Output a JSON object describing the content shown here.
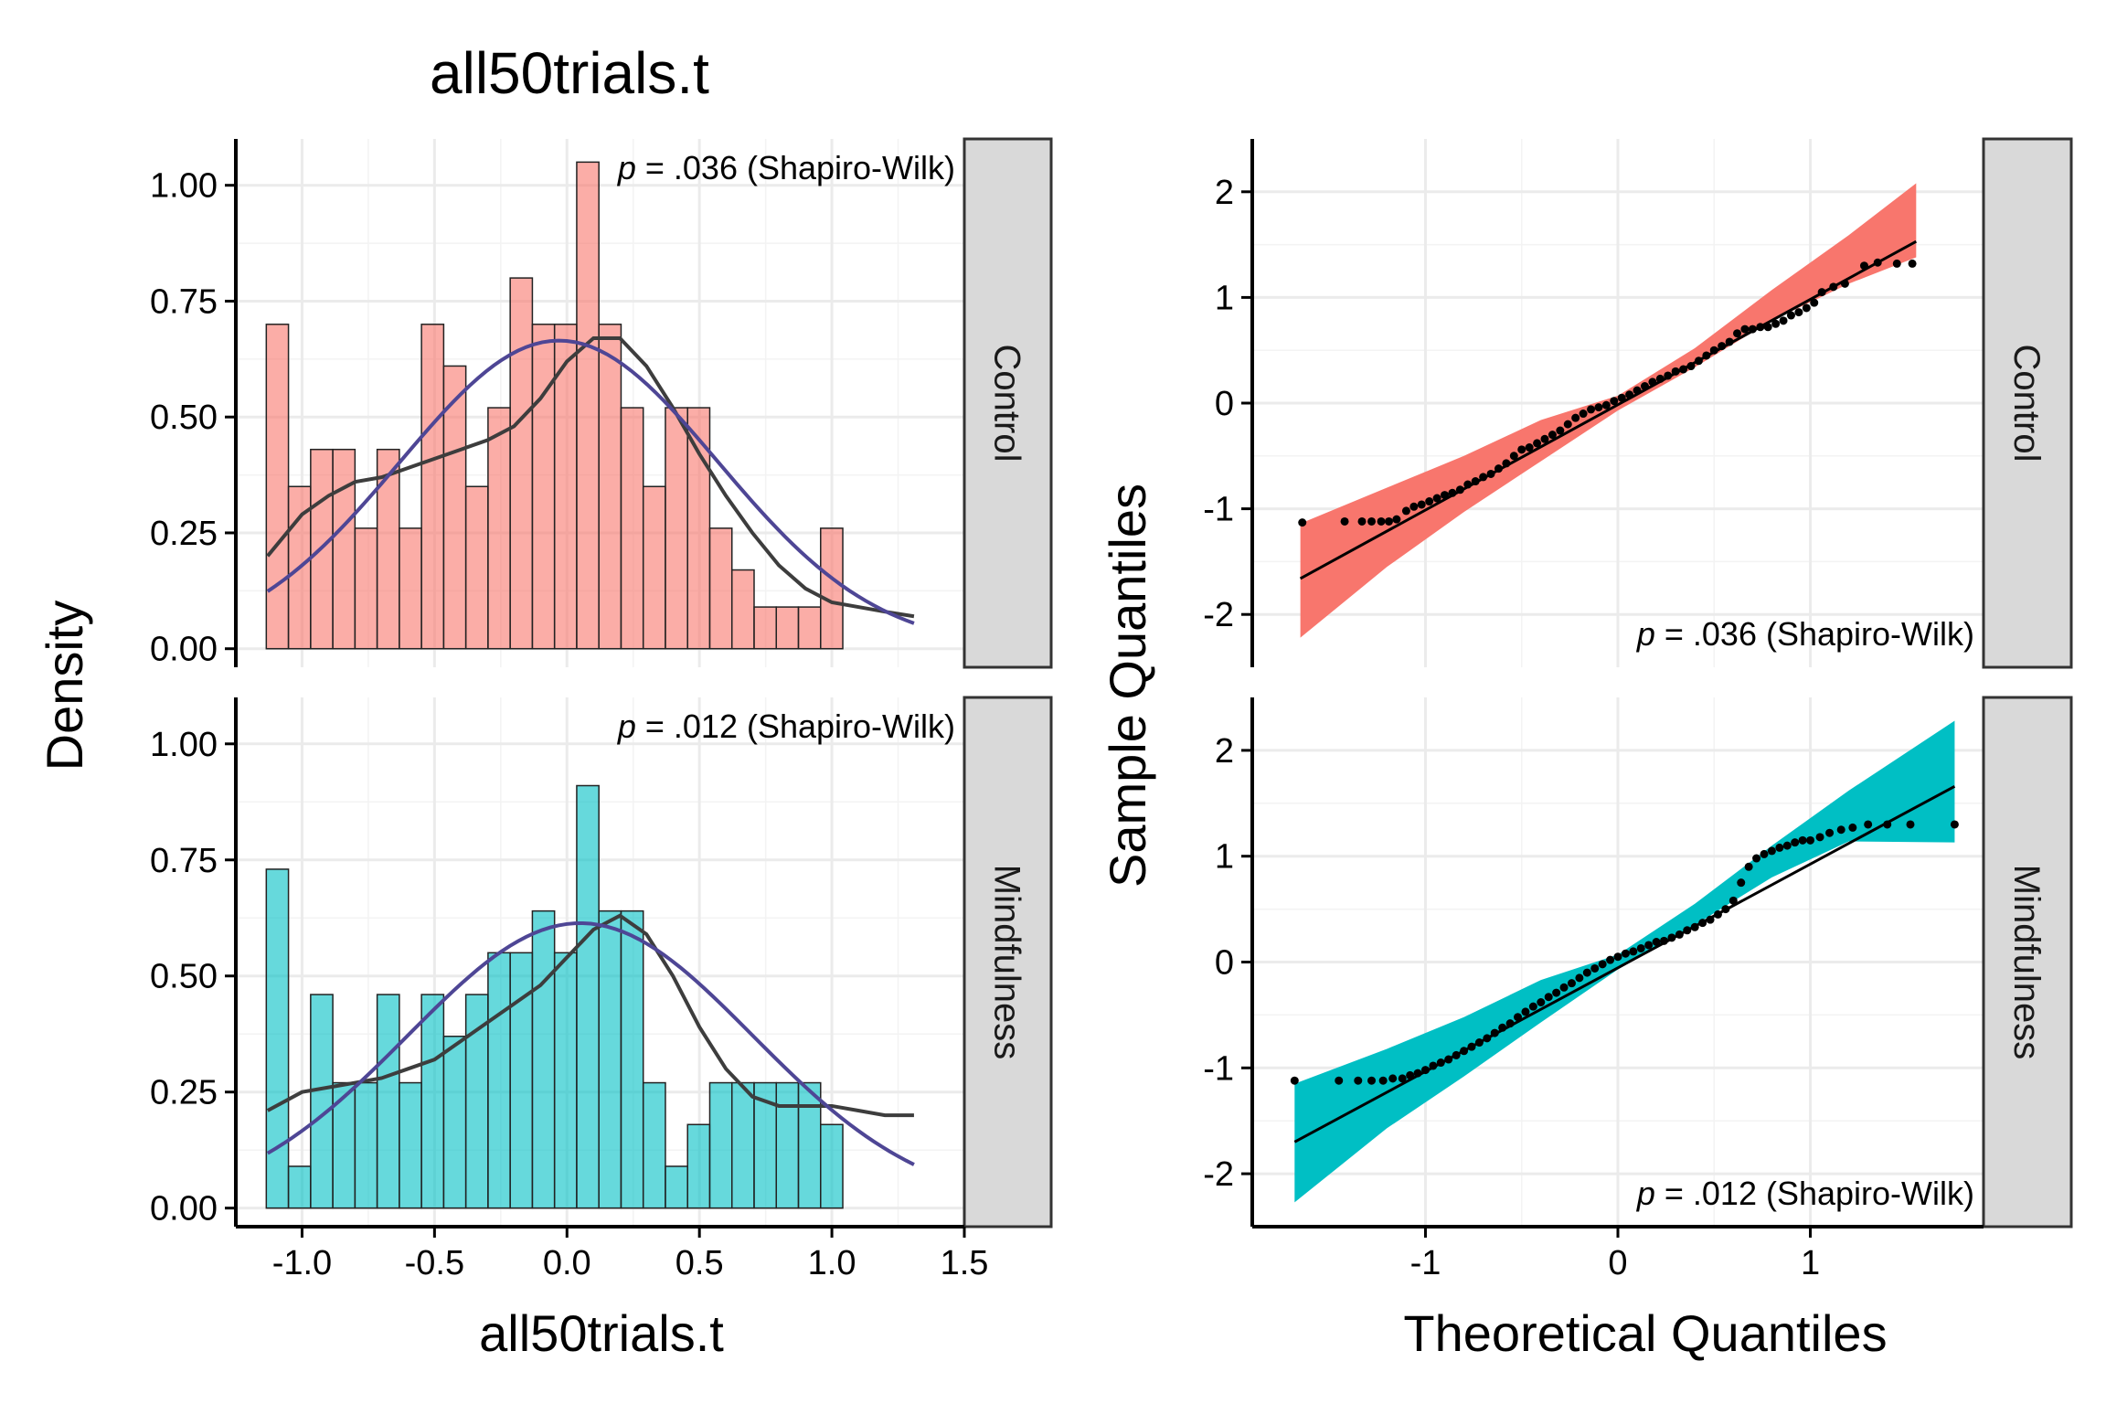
{
  "title": "all50trials.t",
  "colors": {
    "control": "#F8766D",
    "mindfulness": "#00BFC4",
    "kde_line": "#3d3d3d",
    "normal_line": "#4e4695",
    "points": "#000000"
  },
  "hist_xlabel": "all50trials.t",
  "hist_ylabel": "Density",
  "qq_xlabel": "Theoretical Quantiles",
  "qq_ylabel": "Sample Quantiles",
  "chart_data": [
    {
      "type": "bar",
      "panel": "histogram",
      "facet": "Control",
      "annotation_p": "p",
      "annotation_rest": " = .036 (Shapiro-Wilk)",
      "xlim": [
        -1.25,
        1.5
      ],
      "ylim": [
        -0.04,
        1.1
      ],
      "xticks": [
        "-1.0",
        "-0.5",
        "0.0",
        "0.5",
        "1.0",
        "1.5"
      ],
      "xtick_values": [
        -1.0,
        -0.5,
        0.0,
        0.5,
        1.0,
        1.5
      ],
      "yticks": [
        "0.00",
        "0.25",
        "0.50",
        "0.75",
        "1.00"
      ],
      "ytick_values": [
        0,
        0.25,
        0.5,
        0.75,
        1.0
      ],
      "bin_start": -1.135,
      "bin_width": 0.0837,
      "hist_values": [
        0.7,
        0.35,
        0.43,
        0.43,
        0.26,
        0.43,
        0.26,
        0.7,
        0.61,
        0.35,
        0.52,
        0.8,
        0.7,
        0.7,
        1.05,
        0.7,
        0.52,
        0.35,
        0.52,
        0.52,
        0.26,
        0.17,
        0.09,
        0.09,
        0.09,
        0.26
      ],
      "kde": {
        "x": [
          -1.13,
          -1.0,
          -0.9,
          -0.8,
          -0.7,
          -0.6,
          -0.5,
          -0.4,
          -0.3,
          -0.2,
          -0.1,
          0.0,
          0.1,
          0.2,
          0.3,
          0.4,
          0.5,
          0.6,
          0.7,
          0.8,
          0.9,
          1.0,
          1.1,
          1.2,
          1.31
        ],
        "y": [
          0.2,
          0.29,
          0.33,
          0.36,
          0.37,
          0.39,
          0.41,
          0.43,
          0.45,
          0.48,
          0.54,
          0.62,
          0.67,
          0.67,
          0.61,
          0.52,
          0.42,
          0.33,
          0.25,
          0.18,
          0.13,
          0.1,
          0.09,
          0.08,
          0.07
        ]
      },
      "normal": {
        "mean": -0.03,
        "sd": 0.6,
        "xmin": -1.13,
        "xmax": 1.31
      }
    },
    {
      "type": "bar",
      "panel": "histogram",
      "facet": "Mindfulness",
      "annotation_p": "p",
      "annotation_rest": " = .012 (Shapiro-Wilk)",
      "xlim": [
        -1.25,
        1.5
      ],
      "ylim": [
        -0.04,
        1.1
      ],
      "xticks": [
        "-1.0",
        "-0.5",
        "0.0",
        "0.5",
        "1.0",
        "1.5"
      ],
      "xtick_values": [
        -1.0,
        -0.5,
        0.0,
        0.5,
        1.0,
        1.5
      ],
      "yticks": [
        "0.00",
        "0.25",
        "0.50",
        "0.75",
        "1.00"
      ],
      "ytick_values": [
        0,
        0.25,
        0.5,
        0.75,
        1.0
      ],
      "bin_start": -1.135,
      "bin_width": 0.0837,
      "hist_values": [
        0.73,
        0.09,
        0.46,
        0.27,
        0.27,
        0.46,
        0.27,
        0.46,
        0.37,
        0.46,
        0.55,
        0.55,
        0.64,
        0.55,
        0.91,
        0.64,
        0.64,
        0.27,
        0.09,
        0.18,
        0.27,
        0.27,
        0.27,
        0.27,
        0.27,
        0.18
      ],
      "kde": {
        "x": [
          -1.13,
          -1.0,
          -0.9,
          -0.8,
          -0.7,
          -0.6,
          -0.5,
          -0.4,
          -0.3,
          -0.2,
          -0.1,
          0.0,
          0.1,
          0.2,
          0.3,
          0.4,
          0.5,
          0.6,
          0.7,
          0.8,
          0.9,
          1.0,
          1.1,
          1.2,
          1.31
        ],
        "y": [
          0.21,
          0.25,
          0.26,
          0.27,
          0.28,
          0.3,
          0.32,
          0.36,
          0.4,
          0.44,
          0.48,
          0.54,
          0.6,
          0.63,
          0.59,
          0.5,
          0.39,
          0.3,
          0.24,
          0.22,
          0.22,
          0.22,
          0.21,
          0.2,
          0.2
        ]
      },
      "normal": {
        "mean": 0.05,
        "sd": 0.65,
        "xmin": -1.13,
        "xmax": 1.31
      }
    },
    {
      "type": "scatter",
      "panel": "qqplot",
      "facet": "Control",
      "annotation_p": "p",
      "annotation_rest": " = .036 (Shapiro-Wilk)",
      "xlim": [
        -1.9,
        1.9
      ],
      "ylim": [
        -2.5,
        2.5
      ],
      "xticks": [
        "-1",
        "0",
        "1"
      ],
      "xtick_values": [
        -1,
        0,
        1
      ],
      "yticks": [
        "-2",
        "-1",
        "0",
        "1",
        "2"
      ],
      "ytick_values": [
        -2,
        -1,
        0,
        1,
        2
      ],
      "line": {
        "x0": -1.65,
        "y0": -1.66,
        "x1": 1.55,
        "y1": 1.53
      },
      "band_x": [
        -1.65,
        -1.2,
        -0.8,
        -0.4,
        0,
        0.4,
        0.8,
        1.2,
        1.55
      ],
      "band_lower": [
        -2.22,
        -1.55,
        -1.03,
        -0.55,
        -0.07,
        0.34,
        0.78,
        1.13,
        1.38
      ],
      "band_upper": [
        -1.14,
        -0.8,
        -0.5,
        -0.16,
        0.07,
        0.52,
        1.07,
        1.59,
        2.08
      ],
      "points_x": [
        -1.64,
        -1.42,
        -1.33,
        -1.28,
        -1.23,
        -1.19,
        -1.15,
        -1.1,
        -1.06,
        -1.02,
        -0.98,
        -0.94,
        -0.9,
        -0.86,
        -0.82,
        -0.78,
        -0.74,
        -0.7,
        -0.66,
        -0.62,
        -0.58,
        -0.54,
        -0.5,
        -0.46,
        -0.42,
        -0.38,
        -0.34,
        -0.3,
        -0.26,
        -0.22,
        -0.18,
        -0.14,
        -0.1,
        -0.06,
        -0.02,
        0.02,
        0.06,
        0.1,
        0.14,
        0.18,
        0.22,
        0.26,
        0.3,
        0.34,
        0.38,
        0.42,
        0.46,
        0.5,
        0.54,
        0.58,
        0.62,
        0.66,
        0.7,
        0.74,
        0.78,
        0.82,
        0.86,
        0.9,
        0.94,
        0.98,
        1.02,
        1.06,
        1.12,
        1.18,
        1.28,
        1.35,
        1.45,
        1.53
      ],
      "points_y": [
        -1.13,
        -1.12,
        -1.12,
        -1.12,
        -1.12,
        -1.12,
        -1.1,
        -1.02,
        -0.98,
        -0.96,
        -0.93,
        -0.9,
        -0.87,
        -0.85,
        -0.82,
        -0.77,
        -0.74,
        -0.7,
        -0.67,
        -0.62,
        -0.57,
        -0.5,
        -0.44,
        -0.42,
        -0.38,
        -0.34,
        -0.3,
        -0.26,
        -0.2,
        -0.14,
        -0.1,
        -0.06,
        -0.04,
        -0.02,
        0.02,
        0.05,
        0.08,
        0.12,
        0.16,
        0.2,
        0.23,
        0.26,
        0.3,
        0.32,
        0.35,
        0.4,
        0.45,
        0.5,
        0.54,
        0.58,
        0.66,
        0.7,
        0.7,
        0.72,
        0.72,
        0.75,
        0.78,
        0.83,
        0.86,
        0.9,
        0.95,
        1.05,
        1.1,
        1.13,
        1.3,
        1.33,
        1.32,
        1.32
      ]
    },
    {
      "type": "scatter",
      "panel": "qqplot",
      "facet": "Mindfulness",
      "annotation_p": "p",
      "annotation_rest": " = .012 (Shapiro-Wilk)",
      "xlim": [
        -1.9,
        1.9
      ],
      "ylim": [
        -2.5,
        2.5
      ],
      "xticks": [
        "-1",
        "0",
        "1"
      ],
      "xtick_values": [
        -1,
        0,
        1
      ],
      "yticks": [
        "-2",
        "-1",
        "0",
        "1",
        "2"
      ],
      "ytick_values": [
        -2,
        -1,
        0,
        1,
        2
      ],
      "line": {
        "x0": -1.68,
        "y0": -1.7,
        "x1": 1.75,
        "y1": 1.66
      },
      "band_x": [
        -1.68,
        -1.2,
        -0.8,
        -0.4,
        0,
        0.4,
        0.8,
        1.2,
        1.75
      ],
      "band_lower": [
        -2.27,
        -1.57,
        -1.08,
        -0.57,
        -0.07,
        0.35,
        0.8,
        1.14,
        1.13
      ],
      "band_upper": [
        -1.15,
        -0.82,
        -0.52,
        -0.17,
        0.07,
        0.55,
        1.1,
        1.62,
        2.28
      ],
      "points_x": [
        -1.68,
        -1.45,
        -1.35,
        -1.28,
        -1.22,
        -1.17,
        -1.12,
        -1.08,
        -1.04,
        -1.0,
        -0.96,
        -0.92,
        -0.88,
        -0.84,
        -0.8,
        -0.76,
        -0.72,
        -0.68,
        -0.64,
        -0.6,
        -0.56,
        -0.52,
        -0.48,
        -0.44,
        -0.4,
        -0.36,
        -0.32,
        -0.28,
        -0.24,
        -0.2,
        -0.16,
        -0.12,
        -0.08,
        -0.04,
        0.0,
        0.04,
        0.08,
        0.12,
        0.16,
        0.2,
        0.24,
        0.28,
        0.32,
        0.36,
        0.4,
        0.44,
        0.48,
        0.52,
        0.56,
        0.6,
        0.64,
        0.68,
        0.72,
        0.76,
        0.8,
        0.84,
        0.88,
        0.92,
        0.96,
        1.0,
        1.05,
        1.1,
        1.16,
        1.22,
        1.3,
        1.4,
        1.52,
        1.75
      ],
      "points_y": [
        -1.12,
        -1.12,
        -1.12,
        -1.12,
        -1.12,
        -1.1,
        -1.1,
        -1.07,
        -1.05,
        -1.02,
        -0.98,
        -0.95,
        -0.92,
        -0.88,
        -0.84,
        -0.8,
        -0.76,
        -0.72,
        -0.67,
        -0.62,
        -0.58,
        -0.52,
        -0.47,
        -0.42,
        -0.38,
        -0.33,
        -0.29,
        -0.24,
        -0.2,
        -0.15,
        -0.1,
        -0.06,
        -0.02,
        0.02,
        0.05,
        0.08,
        0.1,
        0.13,
        0.16,
        0.19,
        0.2,
        0.23,
        0.26,
        0.3,
        0.33,
        0.37,
        0.4,
        0.45,
        0.5,
        0.58,
        0.75,
        0.9,
        0.98,
        1.02,
        1.05,
        1.08,
        1.1,
        1.13,
        1.15,
        1.15,
        1.18,
        1.22,
        1.25,
        1.27,
        1.3,
        1.3,
        1.3,
        1.3
      ]
    }
  ]
}
